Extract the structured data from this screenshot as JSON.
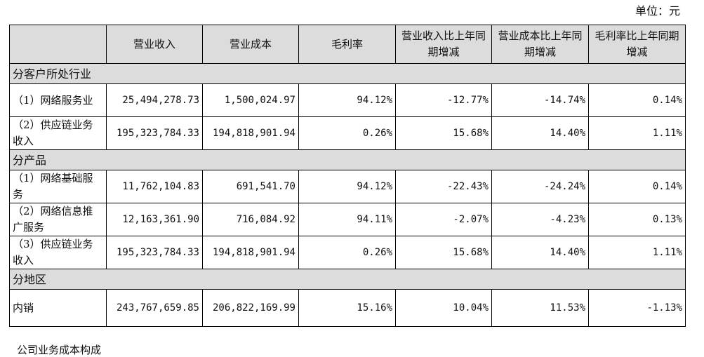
{
  "unit_label": "单位：元",
  "headers": [
    "",
    "营业收入",
    "营业成本",
    "毛利率",
    "营业收入比上年同期增减",
    "营业成本比上年同期增减",
    "毛利率比上年同期增减"
  ],
  "sections": [
    {
      "title": "分客户所处行业",
      "rows": [
        {
          "name": "（1）网络服务业",
          "revenue": "25,494,278.73",
          "cost": "1,500,024.97",
          "gross_margin": "94.12%",
          "revenue_change": "-12.77%",
          "cost_change": "-14.74%",
          "margin_change": "0.14%"
        },
        {
          "name": "（2）供应链业务收入",
          "revenue": "195,323,784.33",
          "cost": "194,818,901.94",
          "gross_margin": "0.26%",
          "revenue_change": "15.68%",
          "cost_change": "14.40%",
          "margin_change": "1.11%"
        }
      ]
    },
    {
      "title": "分产品",
      "rows": [
        {
          "name": "（1）网络基础服务",
          "revenue": "11,762,104.83",
          "cost": "691,541.70",
          "gross_margin": "94.12%",
          "revenue_change": "-22.43%",
          "cost_change": "-24.24%",
          "margin_change": "0.14%"
        },
        {
          "name": "（2）网络信息推广服务",
          "revenue": "12,163,361.90",
          "cost": "716,084.92",
          "gross_margin": "94.11%",
          "revenue_change": "-2.07%",
          "cost_change": "-4.23%",
          "margin_change": "0.13%"
        },
        {
          "name": "（3）供应链业务收入",
          "revenue": "195,323,784.33",
          "cost": "194,818,901.94",
          "gross_margin": "0.26%",
          "revenue_change": "15.68%",
          "cost_change": "14.40%",
          "margin_change": "1.11%"
        }
      ]
    },
    {
      "title": "分地区",
      "rows": [
        {
          "name": "内销",
          "revenue": "243,767,659.85",
          "cost": "206,822,169.99",
          "gross_margin": "15.16%",
          "revenue_change": "10.04%",
          "cost_change": "11.53%",
          "margin_change": "-1.13%"
        }
      ]
    }
  ],
  "footer_text": "公司业务成本构成"
}
